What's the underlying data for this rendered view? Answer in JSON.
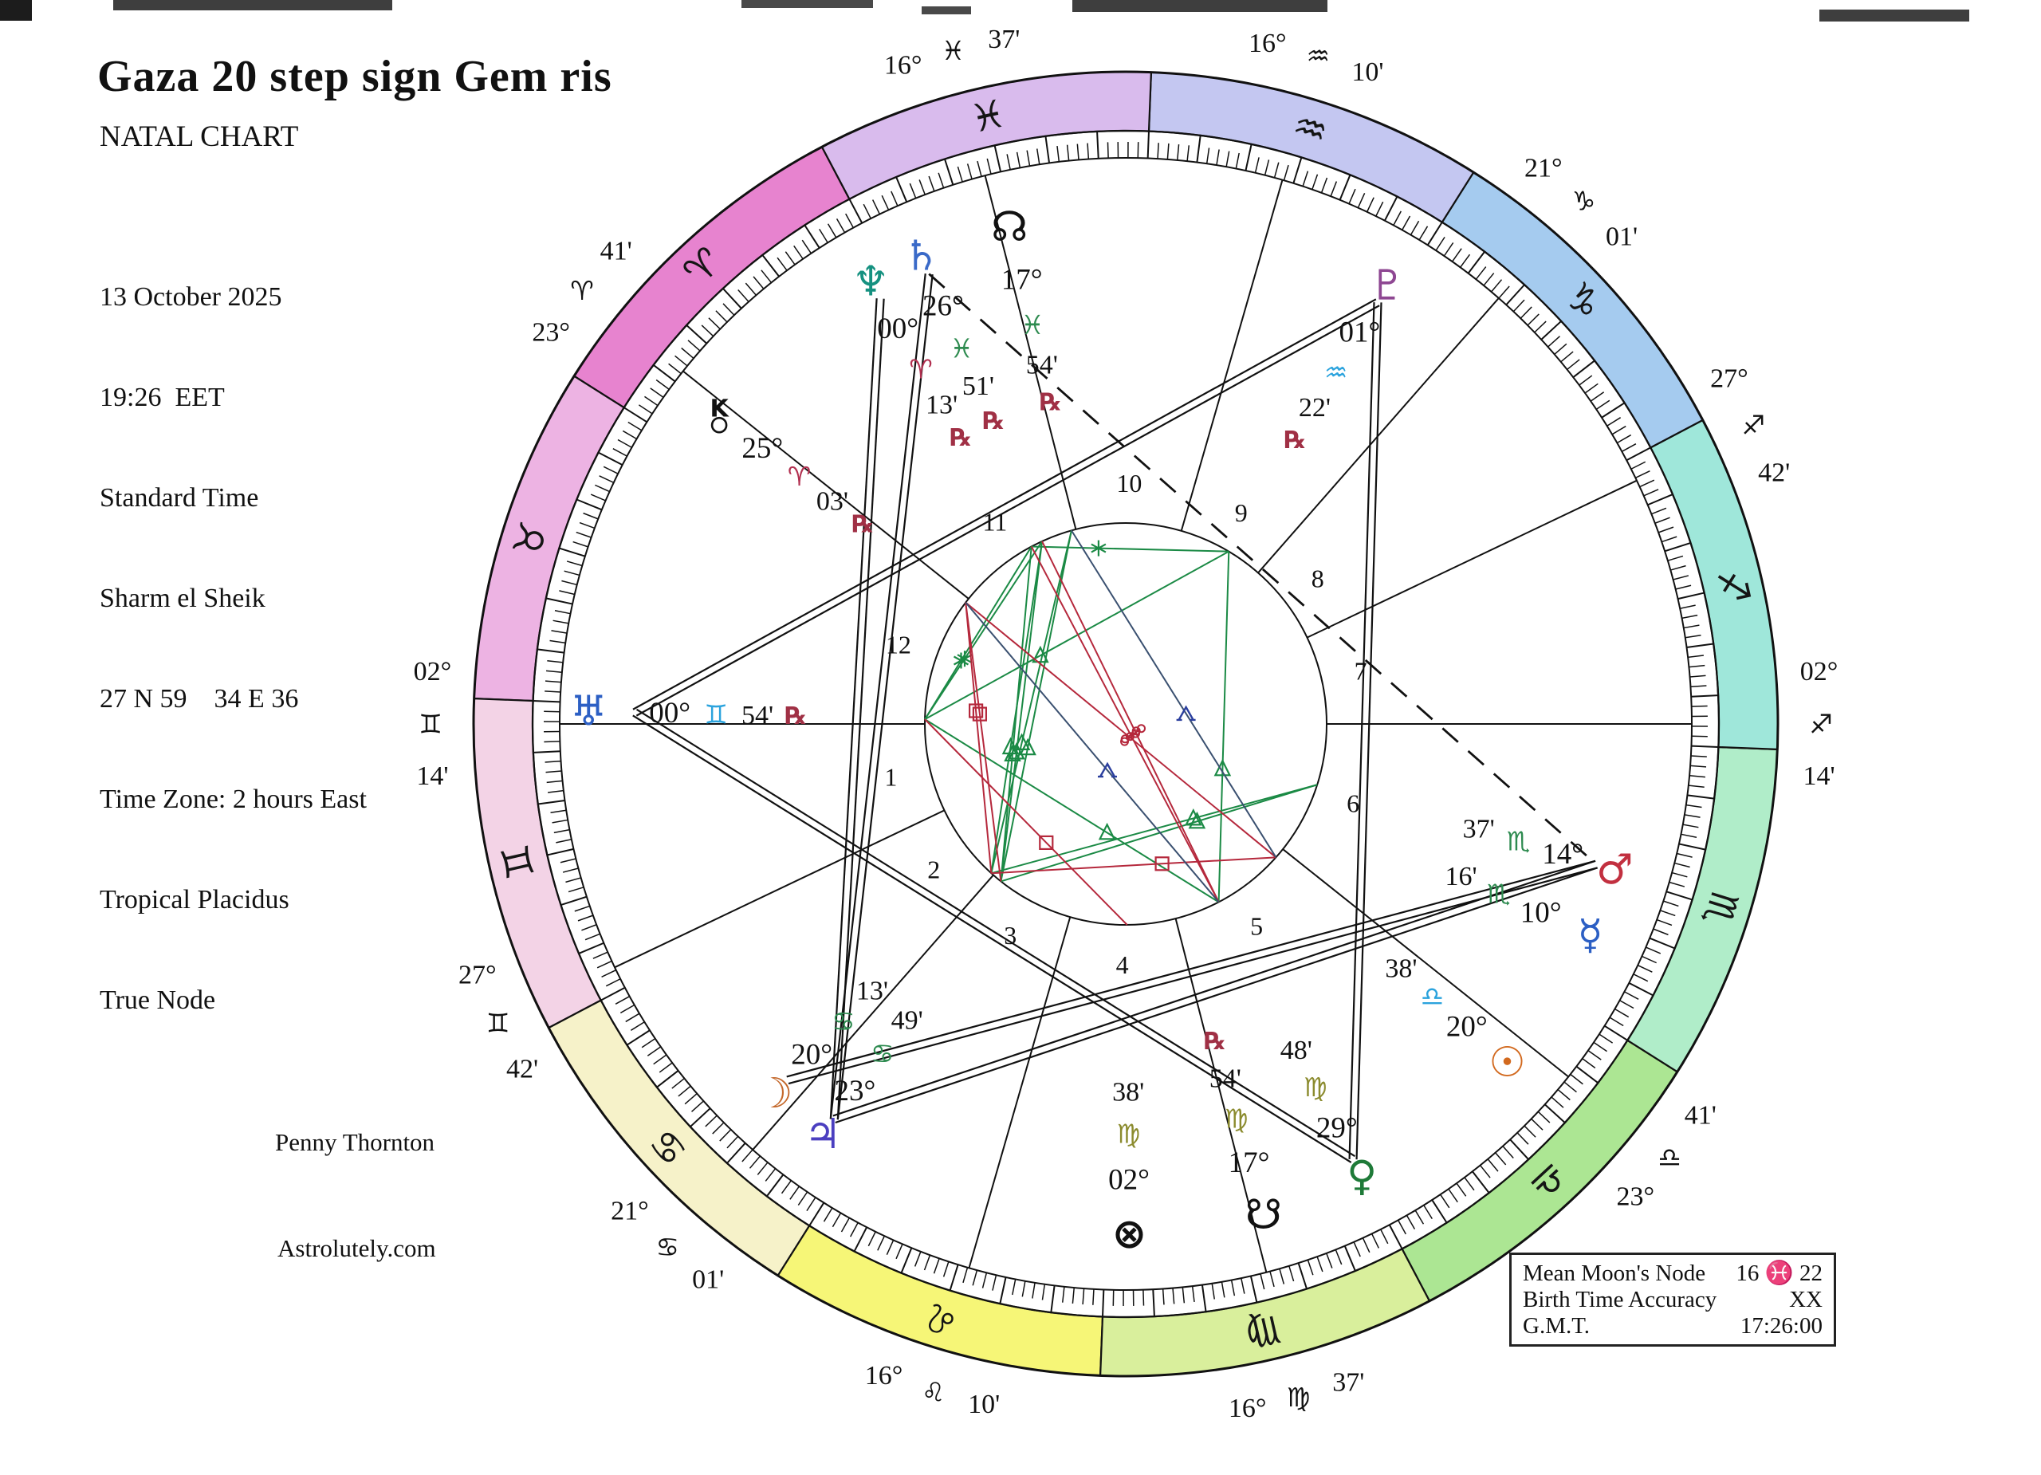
{
  "header": {
    "title": "Gaza 20 step sign Gem ris",
    "subtitle": "NATAL CHART"
  },
  "birth_info": [
    "13 October 2025",
    "19:26  EET",
    "Standard Time",
    "Sharm el Sheik",
    "27 N 59    34 E 36",
    "Time Zone: 2 hours East",
    "Tropical Placidus",
    "True Node"
  ],
  "credits": {
    "author": "Penny Thornton",
    "website": "Astrolutely.com"
  },
  "info_box": {
    "rows": [
      {
        "label": "Mean Moon's Node",
        "value": "16 ♓ 22"
      },
      {
        "label": "Birth Time Accuracy",
        "value": "XX"
      },
      {
        "label": "G.M.T.",
        "value": "17:26:00"
      }
    ]
  },
  "chart": {
    "ascendant_longitude": 62.233,
    "signs": [
      {
        "key": "aries",
        "glyph": "♈",
        "band_color": "#E783CF",
        "element_color": "#B23050"
      },
      {
        "key": "taurus",
        "glyph": "♉",
        "band_color": "#EDB3E3",
        "element_color": "#8B8B2E"
      },
      {
        "key": "gemini",
        "glyph": "♊",
        "band_color": "#F3D3E6",
        "element_color": "#2BA3DD"
      },
      {
        "key": "cancer",
        "glyph": "♋",
        "band_color": "#F6F2C9",
        "element_color": "#2E8B50"
      },
      {
        "key": "leo",
        "glyph": "♌",
        "band_color": "#F6F677",
        "element_color": "#B23050"
      },
      {
        "key": "virgo",
        "glyph": "♍",
        "band_color": "#D9EF9C",
        "element_color": "#8B8B2E"
      },
      {
        "key": "libra",
        "glyph": "♎",
        "band_color": "#ACE693",
        "element_color": "#2BA3DD"
      },
      {
        "key": "scorpio",
        "glyph": "♏",
        "band_color": "#B0EDC9",
        "element_color": "#2E8B50"
      },
      {
        "key": "sagittarius",
        "glyph": "♐",
        "band_color": "#9FE7DA",
        "element_color": "#B23050"
      },
      {
        "key": "capricorn",
        "glyph": "♑",
        "band_color": "#A5CBEF",
        "element_color": "#8B8B2E"
      },
      {
        "key": "aquarius",
        "glyph": "♒",
        "band_color": "#C4C7F1",
        "element_color": "#2BA3DD"
      },
      {
        "key": "pisces",
        "glyph": "♓",
        "band_color": "#D9BBED",
        "element_color": "#2E8B50"
      }
    ],
    "house_cusps": [
      {
        "house": 1,
        "longitude": 62.233,
        "deg": "02°",
        "sign": "gemini",
        "min": "14'"
      },
      {
        "house": 2,
        "longitude": 87.7,
        "deg": "27°",
        "sign": "gemini",
        "min": "42'"
      },
      {
        "house": 3,
        "longitude": 111.017,
        "deg": "21°",
        "sign": "cancer",
        "min": "01'"
      },
      {
        "house": 4,
        "longitude": 136.167,
        "deg": "16°",
        "sign": "leo",
        "min": "10'"
      },
      {
        "house": 5,
        "longitude": 166.617,
        "deg": "16°",
        "sign": "virgo",
        "min": "37'"
      },
      {
        "house": 6,
        "longitude": 203.683,
        "deg": "23°",
        "sign": "libra",
        "min": "41'"
      },
      {
        "house": 7,
        "longitude": 242.233,
        "deg": "02°",
        "sign": "sagittarius",
        "min": "14'"
      },
      {
        "house": 8,
        "longitude": 267.7,
        "deg": "27°",
        "sign": "sagittarius",
        "min": "42'"
      },
      {
        "house": 9,
        "longitude": 291.017,
        "deg": "21°",
        "sign": "capricorn",
        "min": "01'"
      },
      {
        "house": 10,
        "longitude": 316.167,
        "deg": "16°",
        "sign": "aquarius",
        "min": "10'"
      },
      {
        "house": 11,
        "longitude": 346.617,
        "deg": "16°",
        "sign": "pisces",
        "min": "37'"
      },
      {
        "house": 12,
        "longitude": 23.683,
        "deg": "23°",
        "sign": "aries",
        "min": "41'"
      }
    ],
    "planets": [
      {
        "key": "sun",
        "name": "Sun",
        "glyph": "☉",
        "color": "#D2691E",
        "longitude": 200.63,
        "deg": "20°",
        "sign": "libra",
        "min": "38'",
        "retro": false,
        "dphi": 0
      },
      {
        "key": "moon",
        "name": "Moon",
        "glyph": "☽",
        "color": "#C4692C",
        "longitude": 110.22,
        "deg": "20°",
        "sign": "cancer",
        "min": "13'",
        "retro": false,
        "dphi": -1.5
      },
      {
        "key": "mercury",
        "name": "Mercury",
        "glyph": "☿",
        "color": "#2C5FC4",
        "longitude": 220.27,
        "deg": "10°",
        "sign": "scorpio",
        "min": "16'",
        "retro": false,
        "dphi": -2.5
      },
      {
        "key": "venus",
        "name": "Venus",
        "glyph": "♀",
        "color": "#1E7A38",
        "longitude": 179.8,
        "deg": "29°",
        "sign": "virgo",
        "min": "48'",
        "retro": false,
        "dphi": 0
      },
      {
        "key": "mars",
        "name": "Mars",
        "glyph": "♂",
        "color": "#C23040",
        "longitude": 224.62,
        "deg": "14°",
        "sign": "scorpio",
        "min": "37'",
        "retro": false,
        "dphi": 1
      },
      {
        "key": "jupiter",
        "name": "Jupiter",
        "glyph": "♃",
        "color": "#4B3FC0",
        "longitude": 113.82,
        "deg": "23°",
        "sign": "cancer",
        "min": "49'",
        "retro": false,
        "dphi": 2
      },
      {
        "key": "saturn",
        "name": "Saturn",
        "glyph": "♄",
        "color": "#3A6AC8",
        "longitude": 356.85,
        "deg": "26°",
        "sign": "pisces",
        "min": "51'",
        "retro": true,
        "dphi": -1
      },
      {
        "key": "uranus",
        "name": "Uranus",
        "glyph": "♅",
        "color": "#2C5FC4",
        "longitude": 60.9,
        "deg": "00°",
        "sign": "gemini",
        "min": "54'",
        "retro": true,
        "dphi": 0
      },
      {
        "key": "neptune",
        "name": "Neptune",
        "glyph": "♆",
        "color": "#159180",
        "longitude": 0.22,
        "deg": "00°",
        "sign": "aries",
        "min": "13'",
        "retro": true,
        "dphi": 2
      },
      {
        "key": "pluto",
        "name": "Pluto",
        "glyph": "♇",
        "color": "#8E4792",
        "longitude": 301.37,
        "deg": "01°",
        "sign": "aquarius",
        "min": "22'",
        "retro": true,
        "dphi": 0
      },
      {
        "key": "nnode",
        "name": "North Node",
        "glyph": "☊",
        "color": "#111111",
        "longitude": 347.9,
        "deg": "17°",
        "sign": "pisces",
        "min": "54'",
        "retro": true,
        "dphi": -2.5
      },
      {
        "key": "snode",
        "name": "South Node",
        "glyph": "☋",
        "color": "#111111",
        "longitude": 167.9,
        "deg": "17°",
        "sign": "virgo",
        "min": "54'",
        "retro": true,
        "dphi": 0
      },
      {
        "key": "chiron",
        "name": "Chiron",
        "glyph": "chiron",
        "color": "#111111",
        "longitude": 25.05,
        "deg": "25°",
        "sign": "aries",
        "min": "03'",
        "retro": true,
        "dphi": 0
      },
      {
        "key": "fortune",
        "name": "Part of Fortune",
        "glyph": "⊗",
        "color": "#111111",
        "longitude": 152.63,
        "deg": "02°",
        "sign": "virgo",
        "min": "38'",
        "retro": false,
        "dphi": 0
      }
    ],
    "major_aspects": {
      "solid": [
        [
          "uranus",
          "pluto"
        ],
        [
          "uranus",
          "venus"
        ],
        [
          "venus",
          "pluto"
        ],
        [
          "jupiter",
          "saturn"
        ],
        [
          "jupiter",
          "neptune"
        ],
        [
          "mars",
          "jupiter"
        ],
        [
          "mars",
          "moon"
        ]
      ],
      "dashed": [
        [
          "saturn",
          "mars"
        ]
      ]
    },
    "web_aspects": [
      {
        "a": "moon",
        "b": "nnode",
        "type": "trine"
      },
      {
        "a": "venus",
        "b": "uranus",
        "type": "trine"
      },
      {
        "a": "venus",
        "b": "pluto",
        "type": "trine"
      },
      {
        "a": "uranus",
        "b": "pluto",
        "type": "trine"
      },
      {
        "a": "jupiter",
        "b": "saturn",
        "type": "trine"
      },
      {
        "a": "jupiter",
        "b": "neptune",
        "type": "trine"
      },
      {
        "a": "mars",
        "b": "jupiter",
        "type": "trine"
      },
      {
        "a": "mars",
        "b": "moon",
        "type": "trine"
      },
      {
        "a": "moon",
        "b": "saturn",
        "type": "trine"
      },
      {
        "a": "jupiter",
        "b": "nnode",
        "type": "trine"
      },
      {
        "a": "uranus",
        "b": "neptune",
        "type": "sextile"
      },
      {
        "a": "uranus",
        "b": "saturn",
        "type": "sextile"
      },
      {
        "a": "neptune",
        "b": "pluto",
        "type": "sextile"
      },
      {
        "a": "sun",
        "b": "moon",
        "type": "square"
      },
      {
        "a": "chiron",
        "b": "jupiter",
        "type": "square"
      },
      {
        "a": "chiron",
        "b": "moon",
        "type": "square"
      },
      {
        "a": "fortune",
        "b": "uranus",
        "type": "square"
      },
      {
        "a": "sun",
        "b": "chiron",
        "type": "opposition"
      },
      {
        "a": "venus",
        "b": "saturn",
        "type": "opposition"
      },
      {
        "a": "venus",
        "b": "neptune",
        "type": "opposition"
      },
      {
        "a": "sun",
        "b": "nnode",
        "type": "quincunx"
      },
      {
        "a": "venus",
        "b": "chiron",
        "type": "quincunx"
      }
    ],
    "aspect_colors": {
      "trine": "#1B8A45",
      "sextile": "#1B8A45",
      "square": "#B5283C",
      "opposition": "#B5283C",
      "quincunx": "#3A5070"
    },
    "retro_color": "#A03045",
    "retro_glyph": "℞"
  }
}
